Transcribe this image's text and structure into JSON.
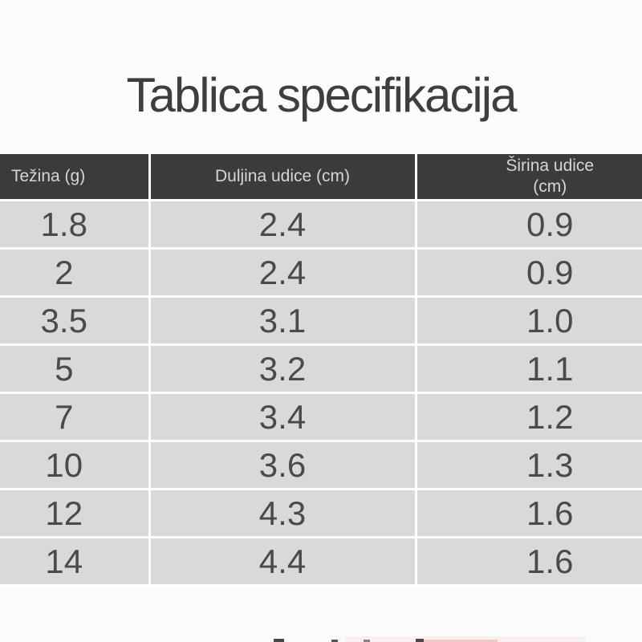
{
  "page": {
    "title": "Tablica specifikacija",
    "background": "#fcfcfc"
  },
  "colors": {
    "title_text": "#3e3e3e",
    "header_background": "#3b3b3b",
    "header_text": "#d6d6d6",
    "row_background": "#d9d9d9",
    "row_text": "#4a4a4a",
    "divider": "#ffffff"
  },
  "chart_data": {
    "type": "table",
    "title": "Tablica specifikacija",
    "columns": [
      "Težina (g)",
      "Duljina udice (cm)",
      "Širina udice (cm)"
    ],
    "rows": [
      [
        "1.8",
        "2.4",
        "0.9"
      ],
      [
        "2",
        "2.4",
        "0.9"
      ],
      [
        "3.5",
        "3.1",
        "1.0"
      ],
      [
        "5",
        "3.2",
        "1.1"
      ],
      [
        "7",
        "3.4",
        "1.2"
      ],
      [
        "10",
        "3.6",
        "1.3"
      ],
      [
        "12",
        "4.3",
        "1.6"
      ],
      [
        "14",
        "4.4",
        "1.6"
      ]
    ]
  }
}
